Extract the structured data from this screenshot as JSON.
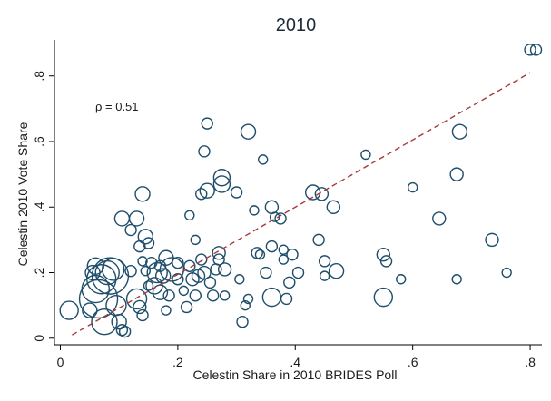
{
  "chart_data": {
    "type": "scatter",
    "title": "2010",
    "xlabel": "Celestin Share in 2010 BRIDES Poll",
    "ylabel": "Celestin 2010 Vote Share",
    "xlim": [
      -0.01,
      0.82
    ],
    "ylim": [
      -0.02,
      0.91
    ],
    "x_ticks": [
      0,
      0.2,
      0.4,
      0.6,
      0.8
    ],
    "x_tick_labels": [
      "0",
      ".2",
      ".4",
      ".6",
      ".8"
    ],
    "y_ticks": [
      0,
      0.2,
      0.4,
      0.6,
      0.8
    ],
    "y_tick_labels": [
      "0",
      ".2",
      ".4",
      ".6",
      ".8"
    ],
    "grid": false,
    "annotation": "ρ = 0.51",
    "colors": {
      "marker": "#1f4e6b",
      "fit_line": "#a63a3a"
    },
    "fit_line": {
      "style": "dashed",
      "x": [
        0.02,
        0.8
      ],
      "y": [
        0.01,
        0.81
      ]
    },
    "points": [
      {
        "x": 0.015,
        "y": 0.085,
        "s": 10
      },
      {
        "x": 0.05,
        "y": 0.085,
        "s": 8
      },
      {
        "x": 0.055,
        "y": 0.2,
        "s": 8
      },
      {
        "x": 0.06,
        "y": 0.22,
        "s": 9
      },
      {
        "x": 0.06,
        "y": 0.15,
        "s": 15
      },
      {
        "x": 0.065,
        "y": 0.12,
        "s": 21
      },
      {
        "x": 0.07,
        "y": 0.18,
        "s": 16
      },
      {
        "x": 0.075,
        "y": 0.05,
        "s": 14
      },
      {
        "x": 0.08,
        "y": 0.2,
        "s": 13
      },
      {
        "x": 0.085,
        "y": 0.19,
        "s": 20
      },
      {
        "x": 0.09,
        "y": 0.21,
        "s": 12
      },
      {
        "x": 0.095,
        "y": 0.1,
        "s": 11
      },
      {
        "x": 0.1,
        "y": 0.05,
        "s": 8
      },
      {
        "x": 0.105,
        "y": 0.025,
        "s": 6
      },
      {
        "x": 0.105,
        "y": 0.365,
        "s": 8
      },
      {
        "x": 0.11,
        "y": 0.02,
        "s": 6
      },
      {
        "x": 0.12,
        "y": 0.205,
        "s": 6
      },
      {
        "x": 0.12,
        "y": 0.33,
        "s": 6
      },
      {
        "x": 0.13,
        "y": 0.365,
        "s": 8
      },
      {
        "x": 0.13,
        "y": 0.12,
        "s": 11
      },
      {
        "x": 0.135,
        "y": 0.095,
        "s": 7
      },
      {
        "x": 0.135,
        "y": 0.28,
        "s": 6
      },
      {
        "x": 0.14,
        "y": 0.07,
        "s": 6
      },
      {
        "x": 0.14,
        "y": 0.44,
        "s": 8
      },
      {
        "x": 0.14,
        "y": 0.235,
        "s": 5
      },
      {
        "x": 0.145,
        "y": 0.205,
        "s": 5
      },
      {
        "x": 0.145,
        "y": 0.31,
        "s": 8
      },
      {
        "x": 0.15,
        "y": 0.16,
        "s": 5
      },
      {
        "x": 0.15,
        "y": 0.29,
        "s": 6
      },
      {
        "x": 0.155,
        "y": 0.23,
        "s": 6
      },
      {
        "x": 0.16,
        "y": 0.16,
        "s": 9
      },
      {
        "x": 0.165,
        "y": 0.2,
        "s": 11
      },
      {
        "x": 0.17,
        "y": 0.14,
        "s": 8
      },
      {
        "x": 0.17,
        "y": 0.22,
        "s": 6
      },
      {
        "x": 0.175,
        "y": 0.19,
        "s": 8
      },
      {
        "x": 0.18,
        "y": 0.085,
        "s": 5
      },
      {
        "x": 0.18,
        "y": 0.245,
        "s": 8
      },
      {
        "x": 0.185,
        "y": 0.13,
        "s": 6
      },
      {
        "x": 0.19,
        "y": 0.21,
        "s": 13
      },
      {
        "x": 0.2,
        "y": 0.18,
        "s": 6
      },
      {
        "x": 0.2,
        "y": 0.23,
        "s": 6
      },
      {
        "x": 0.21,
        "y": 0.145,
        "s": 5
      },
      {
        "x": 0.215,
        "y": 0.095,
        "s": 6
      },
      {
        "x": 0.22,
        "y": 0.375,
        "s": 5
      },
      {
        "x": 0.22,
        "y": 0.22,
        "s": 6
      },
      {
        "x": 0.225,
        "y": 0.18,
        "s": 7
      },
      {
        "x": 0.23,
        "y": 0.13,
        "s": 6
      },
      {
        "x": 0.23,
        "y": 0.3,
        "s": 5
      },
      {
        "x": 0.235,
        "y": 0.19,
        "s": 7
      },
      {
        "x": 0.24,
        "y": 0.24,
        "s": 6
      },
      {
        "x": 0.24,
        "y": 0.44,
        "s": 6
      },
      {
        "x": 0.245,
        "y": 0.2,
        "s": 7
      },
      {
        "x": 0.245,
        "y": 0.57,
        "s": 6
      },
      {
        "x": 0.25,
        "y": 0.655,
        "s": 6
      },
      {
        "x": 0.25,
        "y": 0.45,
        "s": 8
      },
      {
        "x": 0.255,
        "y": 0.17,
        "s": 6
      },
      {
        "x": 0.26,
        "y": 0.13,
        "s": 6
      },
      {
        "x": 0.265,
        "y": 0.21,
        "s": 6
      },
      {
        "x": 0.27,
        "y": 0.24,
        "s": 6
      },
      {
        "x": 0.27,
        "y": 0.26,
        "s": 7
      },
      {
        "x": 0.275,
        "y": 0.47,
        "s": 9
      },
      {
        "x": 0.275,
        "y": 0.49,
        "s": 9
      },
      {
        "x": 0.28,
        "y": 0.21,
        "s": 7
      },
      {
        "x": 0.28,
        "y": 0.13,
        "s": 5
      },
      {
        "x": 0.3,
        "y": 0.445,
        "s": 6
      },
      {
        "x": 0.305,
        "y": 0.18,
        "s": 5
      },
      {
        "x": 0.31,
        "y": 0.05,
        "s": 6
      },
      {
        "x": 0.315,
        "y": 0.1,
        "s": 5
      },
      {
        "x": 0.32,
        "y": 0.63,
        "s": 8
      },
      {
        "x": 0.32,
        "y": 0.12,
        "s": 5
      },
      {
        "x": 0.33,
        "y": 0.39,
        "s": 5
      },
      {
        "x": 0.335,
        "y": 0.26,
        "s": 6
      },
      {
        "x": 0.34,
        "y": 0.255,
        "s": 5
      },
      {
        "x": 0.345,
        "y": 0.545,
        "s": 5
      },
      {
        "x": 0.35,
        "y": 0.2,
        "s": 6
      },
      {
        "x": 0.36,
        "y": 0.4,
        "s": 7
      },
      {
        "x": 0.36,
        "y": 0.125,
        "s": 10
      },
      {
        "x": 0.36,
        "y": 0.28,
        "s": 6
      },
      {
        "x": 0.365,
        "y": 0.37,
        "s": 5
      },
      {
        "x": 0.375,
        "y": 0.365,
        "s": 6
      },
      {
        "x": 0.38,
        "y": 0.27,
        "s": 5
      },
      {
        "x": 0.38,
        "y": 0.24,
        "s": 5
      },
      {
        "x": 0.385,
        "y": 0.12,
        "s": 6
      },
      {
        "x": 0.39,
        "y": 0.17,
        "s": 6
      },
      {
        "x": 0.395,
        "y": 0.255,
        "s": 6
      },
      {
        "x": 0.405,
        "y": 0.2,
        "s": 6
      },
      {
        "x": 0.43,
        "y": 0.445,
        "s": 8
      },
      {
        "x": 0.44,
        "y": 0.3,
        "s": 6
      },
      {
        "x": 0.445,
        "y": 0.44,
        "s": 7
      },
      {
        "x": 0.45,
        "y": 0.19,
        "s": 5
      },
      {
        "x": 0.45,
        "y": 0.235,
        "s": 6
      },
      {
        "x": 0.465,
        "y": 0.4,
        "s": 7
      },
      {
        "x": 0.47,
        "y": 0.205,
        "s": 8
      },
      {
        "x": 0.52,
        "y": 0.56,
        "s": 5
      },
      {
        "x": 0.55,
        "y": 0.255,
        "s": 7
      },
      {
        "x": 0.55,
        "y": 0.125,
        "s": 10
      },
      {
        "x": 0.555,
        "y": 0.235,
        "s": 6
      },
      {
        "x": 0.58,
        "y": 0.18,
        "s": 5
      },
      {
        "x": 0.6,
        "y": 0.46,
        "s": 5
      },
      {
        "x": 0.645,
        "y": 0.365,
        "s": 7
      },
      {
        "x": 0.675,
        "y": 0.5,
        "s": 7
      },
      {
        "x": 0.675,
        "y": 0.18,
        "s": 5
      },
      {
        "x": 0.68,
        "y": 0.63,
        "s": 8
      },
      {
        "x": 0.735,
        "y": 0.3,
        "s": 7
      },
      {
        "x": 0.76,
        "y": 0.2,
        "s": 5
      },
      {
        "x": 0.8,
        "y": 0.88,
        "s": 6
      },
      {
        "x": 0.81,
        "y": 0.88,
        "s": 6
      }
    ]
  }
}
